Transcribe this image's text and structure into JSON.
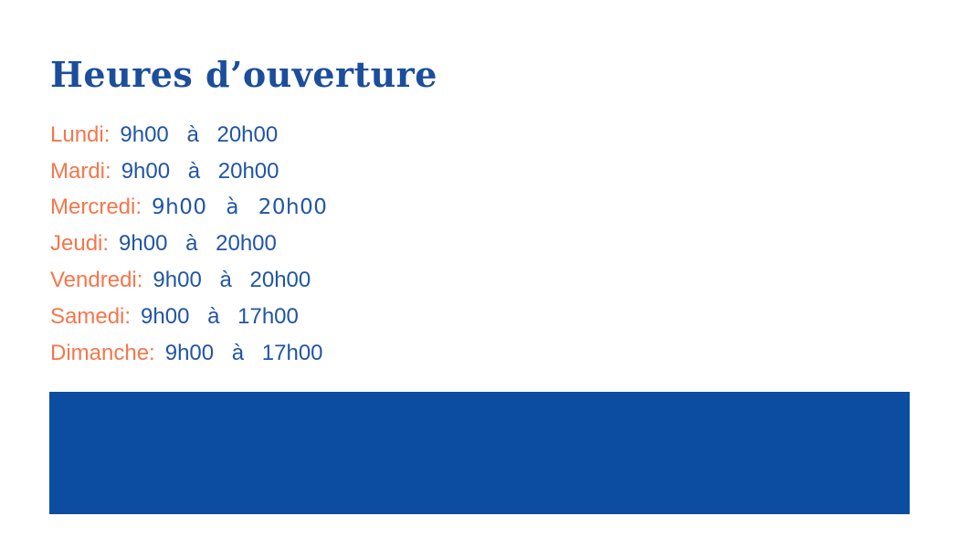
{
  "title": "Heures d’ouverture",
  "hours": {
    "rows": [
      {
        "day": "Lundi:",
        "time": "9h00 à 20h00"
      },
      {
        "day": "Mardi:",
        "time": "9h00 à 20h00"
      },
      {
        "day": "Mercredi:",
        "time": "9h00 à 20h00"
      },
      {
        "day": "Jeudi:",
        "time": "9h00 à 20h00"
      },
      {
        "day": "Vendredi:",
        "time": "9h00 à 20h00"
      },
      {
        "day": "Samedi:",
        "time": "9h00 à 17h00"
      },
      {
        "day": "Dimanche:",
        "time": "9h00 à 17h00"
      }
    ]
  },
  "colors": {
    "title_blue": "#1b4e9b",
    "time_blue": "#2155a4",
    "day_orange": "#f5764b",
    "banner_blue": "#0c4da1",
    "background": "#ffffff"
  }
}
